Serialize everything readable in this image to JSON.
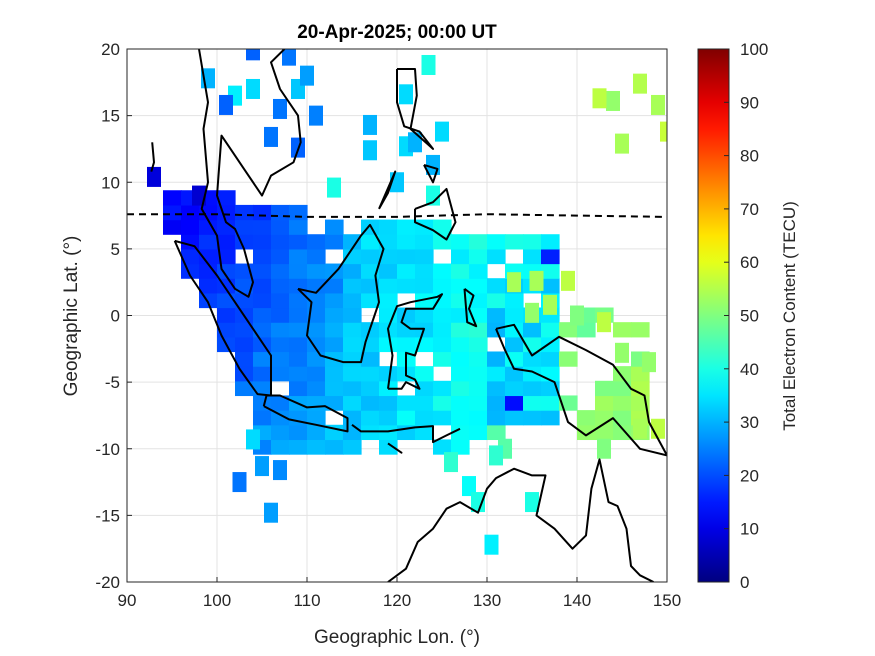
{
  "chart_data": {
    "type": "heatmap",
    "title": "20-Apr-2025; 00:00 UT",
    "xlabel": "Geographic Lon. (°)",
    "ylabel": "Geographic Lat. (°)",
    "colorbar_label": "Total Electron Content (TECU)",
    "colormap": "jet",
    "xlim": [
      90,
      150
    ],
    "ylim": [
      -20,
      20
    ],
    "clim": [
      0,
      100
    ],
    "x_ticks": [
      90,
      100,
      110,
      120,
      130,
      140,
      150
    ],
    "y_ticks": [
      20,
      15,
      10,
      5,
      0,
      -5,
      -10,
      -15,
      -20
    ],
    "colorbar_ticks": [
      0,
      10,
      20,
      30,
      40,
      50,
      60,
      70,
      80,
      90,
      100
    ],
    "x_tick_labels": [
      "90",
      "100",
      "110",
      "120",
      "130",
      "140",
      "150"
    ],
    "y_tick_labels": [
      "20",
      "15",
      "10",
      "5",
      "0",
      "-5",
      "-10",
      "-15",
      "-20"
    ],
    "colorbar_tick_labels": [
      "0",
      "10",
      "20",
      "30",
      "40",
      "50",
      "60",
      "70",
      "80",
      "90",
      "100"
    ],
    "grid": true,
    "magnetic_equator_lat": [
      [
        90,
        7.6
      ],
      [
        100,
        7.6
      ],
      [
        110,
        7.4
      ],
      [
        120,
        7.4
      ],
      [
        130,
        7.6
      ],
      [
        140,
        7.5
      ],
      [
        150,
        7.4
      ]
    ],
    "dense_regions": [
      {
        "lon": [
          92,
          112
        ],
        "lat": [
          -11,
          8
        ],
        "tec": 22,
        "note_points": [
          [
            95,
            5,
            14
          ],
          [
            100,
            2,
            18
          ],
          [
            105,
            -3,
            21
          ],
          [
            108,
            -7,
            24
          ]
        ]
      },
      {
        "lon": [
          106,
          128
        ],
        "lat": [
          -11,
          7
        ],
        "tec": 34
      },
      {
        "lon": [
          124,
          137
        ],
        "lat": [
          -8,
          3
        ],
        "tec": 36
      },
      {
        "lon": [
          127,
          148
        ],
        "lat": [
          -10,
          3
        ],
        "tec": 47
      }
    ],
    "points": [
      [
        104,
        19.9,
        22
      ],
      [
        108,
        19.5,
        24
      ],
      [
        99,
        17.8,
        30
      ],
      [
        104,
        17.0,
        34
      ],
      [
        109,
        17.0,
        32
      ],
      [
        102,
        16.5,
        36
      ],
      [
        110,
        18.0,
        28
      ],
      [
        107,
        15.5,
        24
      ],
      [
        101,
        15.8,
        22
      ],
      [
        111,
        15.0,
        25
      ],
      [
        106,
        13.4,
        24
      ],
      [
        109,
        12.6,
        22
      ],
      [
        117,
        14.3,
        30
      ],
      [
        121,
        16.6,
        34
      ],
      [
        123.5,
        18.8,
        40
      ],
      [
        121,
        12.7,
        34
      ],
      [
        117,
        12.4,
        32
      ],
      [
        122,
        13.0,
        30
      ],
      [
        124,
        11.3,
        30
      ],
      [
        125,
        13.8,
        34
      ],
      [
        120,
        10.0,
        32
      ],
      [
        113,
        9.6,
        40
      ],
      [
        124,
        9.0,
        40
      ],
      [
        93,
        10.4,
        9
      ],
      [
        98,
        9.0,
        8
      ],
      [
        144,
        16.1,
        52
      ],
      [
        147,
        17.4,
        55
      ],
      [
        149,
        15.8,
        54
      ],
      [
        150,
        13.8,
        57
      ],
      [
        145,
        12.9,
        54
      ],
      [
        142.5,
        16.3,
        56
      ],
      [
        140,
        0.0,
        50
      ],
      [
        143,
        -0.5,
        56
      ],
      [
        145,
        -2.8,
        52
      ],
      [
        148,
        -3.5,
        52
      ],
      [
        147,
        -8.5,
        54
      ],
      [
        149,
        -8.5,
        56
      ],
      [
        143,
        -10.0,
        50
      ],
      [
        132,
        -10.0,
        46
      ],
      [
        126,
        -11.0,
        42
      ],
      [
        128,
        -12.8,
        38
      ],
      [
        131,
        -10.5,
        42
      ],
      [
        129,
        -14.0,
        40
      ],
      [
        135,
        -14.0,
        40
      ],
      [
        130.5,
        -17.2,
        36
      ],
      [
        104,
        -9.3,
        34
      ],
      [
        105,
        -11.3,
        28
      ],
      [
        107,
        -11.6,
        26
      ],
      [
        102.5,
        -12.5,
        24
      ],
      [
        106,
        -14.8,
        28
      ],
      [
        137,
        0.8,
        54
      ],
      [
        135,
        0.2,
        52
      ],
      [
        133,
        2.5,
        54
      ],
      [
        135.5,
        2.6,
        54
      ],
      [
        139,
        2.6,
        56
      ]
    ]
  }
}
